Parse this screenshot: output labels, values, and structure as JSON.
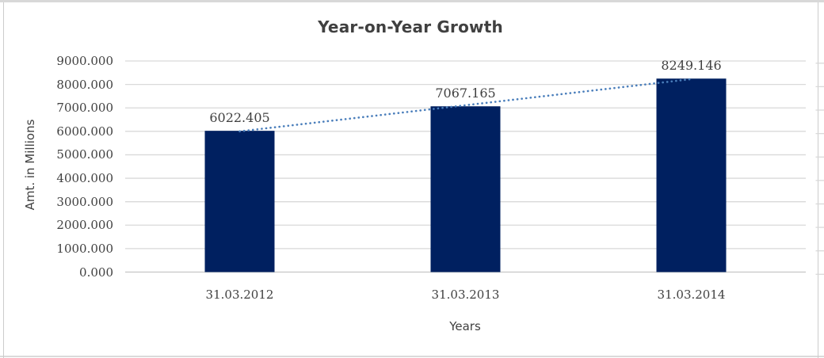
{
  "chart_data": {
    "type": "bar",
    "title": "Year-on-Year Growth",
    "xlabel": "Years",
    "ylabel": "Amt. in Millions",
    "categories": [
      "31.03.2012",
      "31.03.2013",
      "31.03.2014"
    ],
    "series": [
      {
        "name": "Amt. in Millions",
        "values": [
          6022.405,
          7067.165,
          8249.146
        ]
      }
    ],
    "data_labels": [
      "6022.405",
      "7067.165",
      "8249.146"
    ],
    "ylim": [
      0,
      9000
    ],
    "ytick_step": 1000,
    "ytick_labels": [
      "0.000",
      "1000.000",
      "2000.000",
      "3000.000",
      "4000.000",
      "5000.000",
      "6000.000",
      "7000.000",
      "8000.000",
      "9000.000"
    ],
    "gridlines": true,
    "legend": "none",
    "trendline": {
      "type": "linear",
      "style": "dotted"
    },
    "colors": {
      "bar": "#002060",
      "trendline": "#4a7ebb",
      "gridline": "#d9d9d9",
      "axis_line": "#c6c6c6",
      "title_text": "#404040",
      "tick_text": "#3f3f3f",
      "data_label_text": "#404040",
      "frame": "#cccccc"
    }
  }
}
